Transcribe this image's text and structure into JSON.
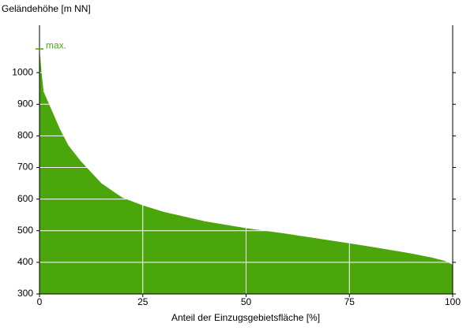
{
  "chart_data": {
    "type": "area",
    "y_label": "Geländehöhe [m NN]",
    "x_label": "Anteil der Einzugsgebietsfläche [%]",
    "x": [
      0,
      0.5,
      1,
      2,
      3,
      5,
      7,
      10,
      15,
      20,
      25,
      30,
      40,
      50,
      60,
      70,
      75,
      80,
      90,
      95,
      98,
      100
    ],
    "series": [
      {
        "color": "#4aa60a",
        "values": [
          1075,
          1000,
          940,
          910,
          880,
          820,
          770,
          720,
          650,
          605,
          580,
          560,
          530,
          508,
          490,
          470,
          460,
          450,
          428,
          415,
          405,
          393
        ]
      }
    ],
    "annotations": [
      {
        "text": "max.",
        "y": 1075
      }
    ],
    "xlim": [
      0,
      100
    ],
    "xticks": [
      0,
      25,
      50,
      75,
      100
    ],
    "ylim": [
      300,
      1150
    ],
    "yticks": [
      300,
      400,
      500,
      600,
      700,
      800,
      900,
      1000
    ],
    "grid": true
  }
}
